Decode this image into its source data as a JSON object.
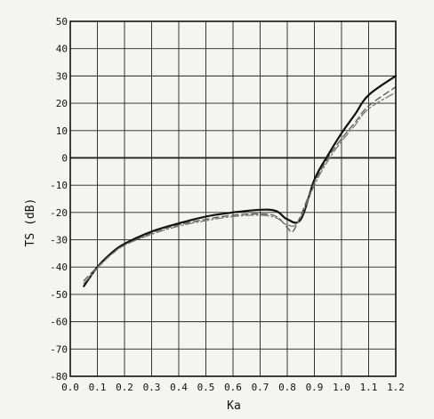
{
  "chart_data": {
    "type": "line",
    "title": "",
    "xlabel": "Ka",
    "ylabel": "TS (dB)",
    "xlim": [
      0.0,
      1.2
    ],
    "ylim": [
      -80,
      50
    ],
    "grid": true,
    "x_ticks": [
      0.0,
      0.1,
      0.2,
      0.3,
      0.4,
      0.5,
      0.6,
      0.7,
      0.8,
      0.9,
      1.0,
      1.1,
      1.2
    ],
    "x_tick_labels": [
      "0.0",
      "0.1",
      "0.2",
      "0.3",
      "0.4",
      "0.5",
      "0.6",
      "0.7",
      "0.8",
      "0.9",
      "1.0",
      "1.1",
      "1.2"
    ],
    "y_ticks": [
      50,
      40,
      30,
      20,
      10,
      0,
      -10,
      -20,
      -30,
      -40,
      -50,
      -60,
      -70,
      -80
    ],
    "y_tick_labels": [
      "50",
      "40",
      "30",
      "20",
      "10",
      "0",
      "-10",
      "-20",
      "-30",
      "-40",
      "-50",
      "-60",
      "-70",
      "-80"
    ],
    "series": [
      {
        "style": "solid",
        "color": "#111111",
        "points": [
          [
            0.05,
            -47
          ],
          [
            0.1,
            -40
          ],
          [
            0.15,
            -35
          ],
          [
            0.2,
            -31.5
          ],
          [
            0.3,
            -27
          ],
          [
            0.4,
            -24
          ],
          [
            0.5,
            -21.5
          ],
          [
            0.6,
            -20
          ],
          [
            0.7,
            -19
          ],
          [
            0.76,
            -19.5
          ],
          [
            0.8,
            -22.5
          ],
          [
            0.85,
            -22.5
          ],
          [
            0.9,
            -8
          ],
          [
            0.95,
            1
          ],
          [
            1.0,
            9
          ],
          [
            1.05,
            16
          ],
          [
            1.1,
            23
          ],
          [
            1.2,
            30
          ]
        ]
      },
      {
        "style": "dashed",
        "color": "#555555",
        "points": [
          [
            0.05,
            -45
          ],
          [
            0.1,
            -40
          ],
          [
            0.15,
            -35.5
          ],
          [
            0.2,
            -32
          ],
          [
            0.3,
            -27.5
          ],
          [
            0.4,
            -24.5
          ],
          [
            0.5,
            -22.5
          ],
          [
            0.6,
            -21
          ],
          [
            0.7,
            -20.5
          ],
          [
            0.76,
            -21.5
          ],
          [
            0.8,
            -25.5
          ],
          [
            0.82,
            -27
          ],
          [
            0.85,
            -21
          ],
          [
            0.9,
            -9
          ],
          [
            0.95,
            0
          ],
          [
            1.0,
            7
          ],
          [
            1.05,
            13
          ],
          [
            1.1,
            19
          ],
          [
            1.2,
            26
          ]
        ]
      },
      {
        "style": "dash-dot",
        "color": "#777777",
        "points": [
          [
            0.05,
            -46
          ],
          [
            0.1,
            -40.5
          ],
          [
            0.15,
            -35.5
          ],
          [
            0.2,
            -32
          ],
          [
            0.3,
            -28
          ],
          [
            0.4,
            -25
          ],
          [
            0.5,
            -23
          ],
          [
            0.6,
            -21.5
          ],
          [
            0.7,
            -21
          ],
          [
            0.76,
            -22
          ],
          [
            0.8,
            -24.5
          ],
          [
            0.84,
            -23.5
          ],
          [
            0.9,
            -10
          ],
          [
            0.95,
            -1
          ],
          [
            1.0,
            6
          ],
          [
            1.05,
            12
          ],
          [
            1.1,
            18
          ],
          [
            1.2,
            24
          ]
        ]
      }
    ]
  }
}
